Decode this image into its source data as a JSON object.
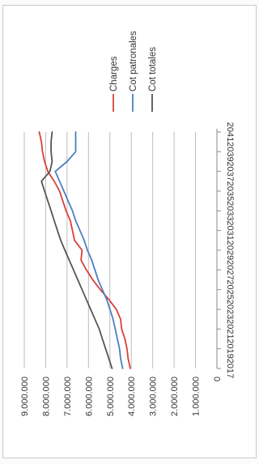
{
  "chart_data": {
    "type": "line",
    "orientation": "rotated-90-clockwise",
    "title": "",
    "xlabel": "",
    "ylabel": "",
    "ylim": [
      0,
      9000000
    ],
    "y_ticks": [
      0,
      1000000,
      2000000,
      3000000,
      4000000,
      5000000,
      6000000,
      7000000,
      8000000,
      9000000
    ],
    "y_tick_labels": [
      "0",
      "1.000.000",
      "2.000.000",
      "3.000.000",
      "4.000.000",
      "5.000.000",
      "6.000.000",
      "7.000.000",
      "8.000.000",
      "9.000.000"
    ],
    "x_tick_labels": [
      "2017",
      "2019",
      "2021",
      "2023",
      "2025",
      "2027",
      "2029",
      "2031",
      "2033",
      "2035",
      "2037",
      "2039",
      "2041"
    ],
    "x": [
      2017,
      2018,
      2019,
      2020,
      2021,
      2022,
      2023,
      2024,
      2025,
      2026,
      2027,
      2028,
      2029,
      2030,
      2031,
      2032,
      2033,
      2034,
      2035,
      2036,
      2037,
      2038,
      2039,
      2040,
      2041
    ],
    "grid": true,
    "legend_position": "right",
    "series": [
      {
        "name": "Charges",
        "color": "#d9403a",
        "values": [
          4050000,
          4150000,
          4200000,
          4300000,
          4450000,
          4500000,
          4700000,
          5050000,
          5450000,
          5800000,
          6100000,
          6350000,
          6300000,
          6650000,
          6750000,
          6850000,
          7050000,
          7200000,
          7350000,
          7600000,
          7900000,
          8050000,
          8150000,
          8200000,
          8300000
        ]
      },
      {
        "name": "Cot patronales",
        "color": "#4a7fc1",
        "values": [
          4400000,
          4500000,
          4550000,
          4650000,
          4750000,
          4850000,
          5000000,
          5150000,
          5350000,
          5550000,
          5700000,
          5850000,
          6050000,
          6200000,
          6400000,
          6600000,
          6750000,
          6950000,
          7150000,
          7350000,
          7550000,
          7000000,
          6600000,
          6600000,
          6600000
        ]
      },
      {
        "name": "Cot totales",
        "color": "#555555",
        "values": [
          4900000,
          5050000,
          5200000,
          5350000,
          5500000,
          5700000,
          5900000,
          6100000,
          6300000,
          6500000,
          6700000,
          6900000,
          7100000,
          7300000,
          7450000,
          7600000,
          7750000,
          7900000,
          8050000,
          8200000,
          7800000,
          7700000,
          7750000,
          7750000,
          7700000
        ]
      }
    ]
  }
}
